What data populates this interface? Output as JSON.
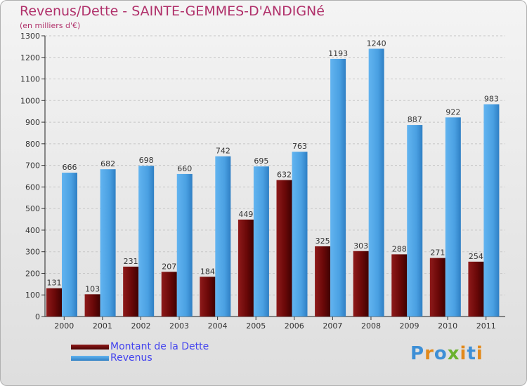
{
  "header": {
    "title": "Revenus/Dette - SAINTE-GEMMES-D'ANDIGNé",
    "subtitle": "(en milliers d'€)"
  },
  "chart_data": {
    "type": "bar",
    "title": "Revenus/Dette - SAINTE-GEMMES-D'ANDIGNé",
    "subtitle": "(en milliers d'€)",
    "xlabel": "",
    "ylabel": "",
    "ylim": [
      0,
      1300
    ],
    "yticks": [
      0,
      100,
      200,
      300,
      400,
      500,
      600,
      700,
      800,
      900,
      1000,
      1100,
      1200,
      1300
    ],
    "grid": true,
    "legend_position": "bottom-left",
    "categories": [
      "2000",
      "2001",
      "2002",
      "2003",
      "2004",
      "2005",
      "2006",
      "2007",
      "2008",
      "2009",
      "2010",
      "2011"
    ],
    "series": [
      {
        "name": "Montant de la Dette",
        "color": "#6e0a0a",
        "values": [
          131,
          103,
          231,
          207,
          184,
          449,
          632,
          325,
          303,
          288,
          271,
          254
        ]
      },
      {
        "name": "Revenus",
        "color": "#4fa6e8",
        "values": [
          666,
          682,
          698,
          660,
          742,
          695,
          763,
          1193,
          1240,
          887,
          922,
          983
        ]
      }
    ]
  },
  "legend": {
    "items": [
      {
        "label": "Montant de la Dette",
        "color": "#6e0a0a"
      },
      {
        "label": "Revenus",
        "color": "#4fa6e8"
      }
    ]
  },
  "logo": {
    "text": "Proxiti"
  }
}
